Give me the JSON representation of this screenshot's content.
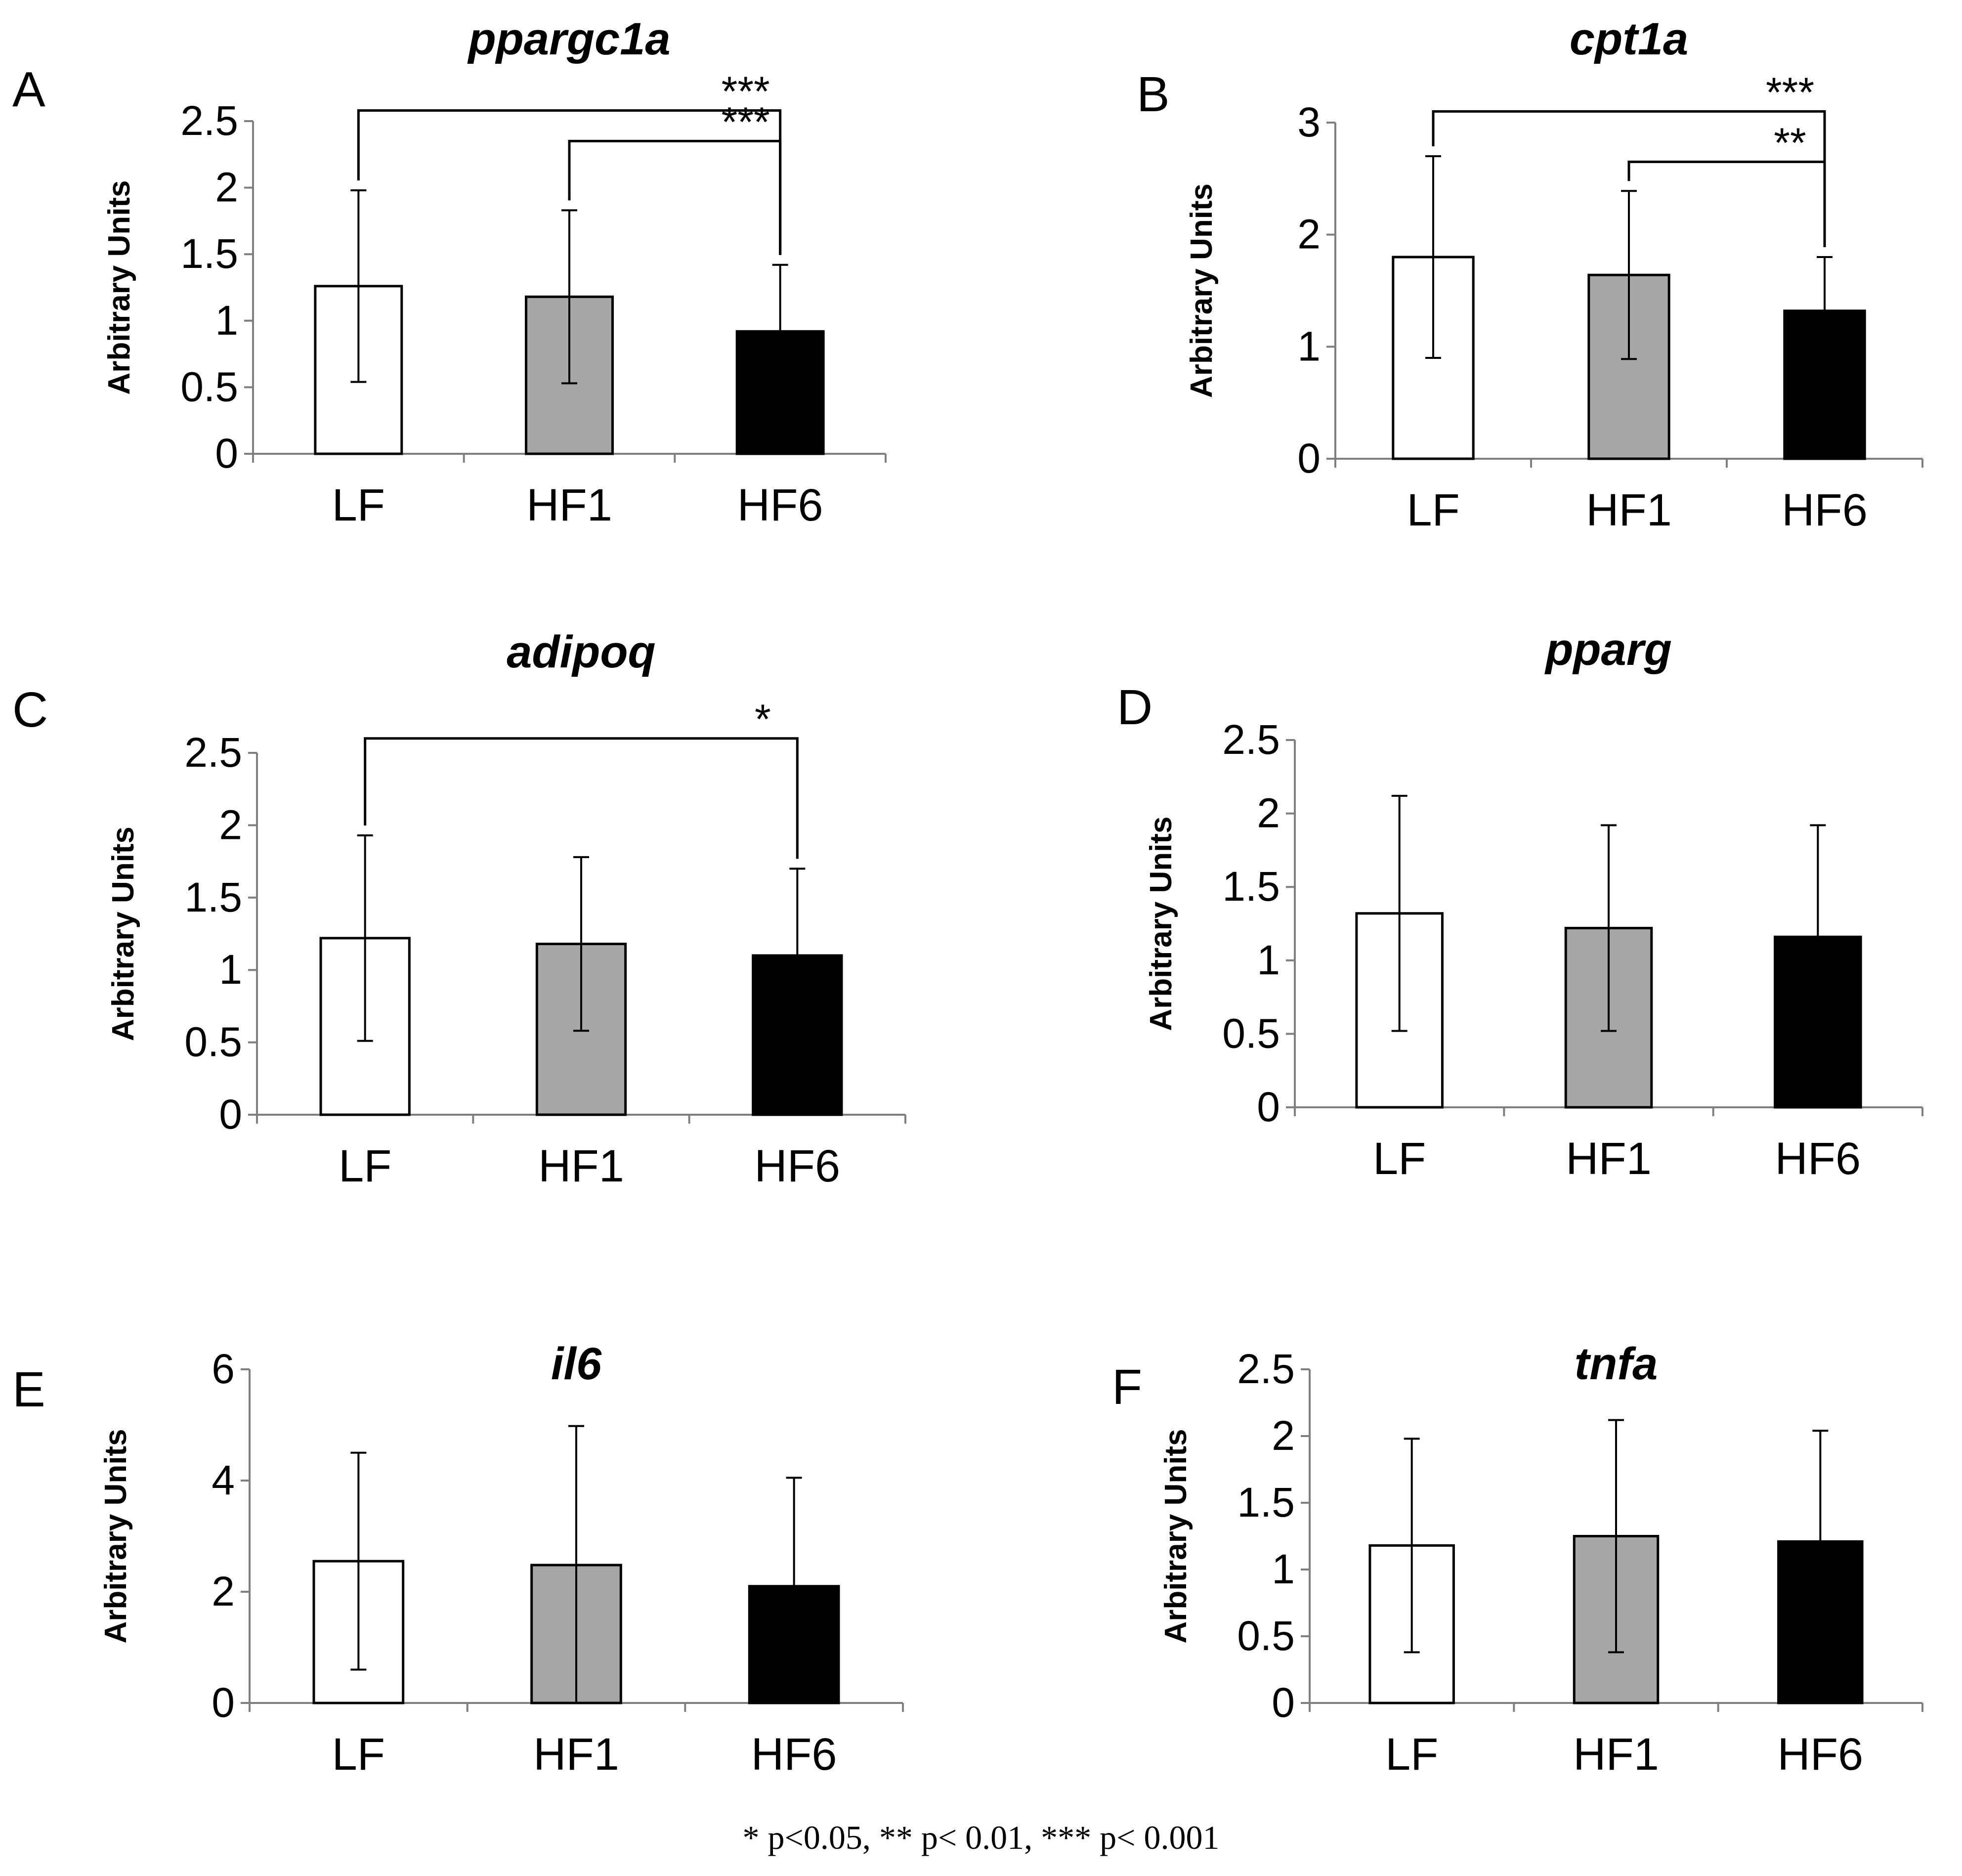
{
  "footnote": "* p<0.05, ** p< 0.01, *** p< 0.001",
  "colors": {
    "LF": "#ffffff",
    "HF1": "#a6a6a6",
    "HF6": "#000000"
  },
  "chart_data": [
    {
      "type": "bar",
      "letter": "A",
      "title": "ppargc1a",
      "ylabel": "Arbitrary Units",
      "categories": [
        "LF",
        "HF1",
        "HF6"
      ],
      "values": [
        1.26,
        1.18,
        0.92
      ],
      "errors": [
        0.72,
        0.65,
        0.5
      ],
      "ylim": [
        0,
        2.5
      ],
      "yticks": [
        0,
        0.5,
        1,
        1.5,
        2,
        2.5
      ],
      "ytick_labels": [
        "0",
        "0.5",
        "1",
        "1.5",
        "2",
        "2.5"
      ],
      "significance": [
        {
          "from": "HF1",
          "to": "HF6",
          "label": "***",
          "level": 2.35
        },
        {
          "from": "LF",
          "to": "HF6",
          "label": "***",
          "level": 2.58
        }
      ]
    },
    {
      "type": "bar",
      "letter": "B",
      "title": "cpt1a",
      "ylabel": "Arbitrary Units",
      "categories": [
        "LF",
        "HF1",
        "HF6"
      ],
      "values": [
        1.8,
        1.64,
        1.32
      ],
      "errors": [
        0.9,
        0.75,
        0.48
      ],
      "ylim": [
        0,
        3
      ],
      "yticks": [
        0,
        1,
        2,
        3
      ],
      "ytick_labels": [
        "0",
        "1",
        "2",
        "3"
      ],
      "significance": [
        {
          "from": "HF1",
          "to": "HF6",
          "label": "**",
          "level": 2.65
        },
        {
          "from": "LF",
          "to": "HF6",
          "label": "***",
          "level": 3.1
        }
      ]
    },
    {
      "type": "bar",
      "letter": "C",
      "title": "adipoq",
      "ylabel": "Arbitrary Units",
      "categories": [
        "LF",
        "HF1",
        "HF6"
      ],
      "values": [
        1.22,
        1.18,
        1.1
      ],
      "errors": [
        0.71,
        0.6,
        0.6
      ],
      "ylim": [
        0,
        2.5
      ],
      "yticks": [
        0,
        0.5,
        1,
        1.5,
        2,
        2.5
      ],
      "ytick_labels": [
        "0",
        "0.5",
        "1",
        "1.5",
        "2",
        "2.5"
      ],
      "significance": [
        {
          "from": "LF",
          "to": "HF6",
          "label": "*",
          "level": 2.6
        }
      ]
    },
    {
      "type": "bar",
      "letter": "D",
      "title": "pparg",
      "ylabel": "Arbitrary Units",
      "categories": [
        "LF",
        "HF1",
        "HF6"
      ],
      "values": [
        1.32,
        1.22,
        1.16
      ],
      "errors": [
        0.8,
        0.7,
        0.76
      ],
      "ylim": [
        0,
        2.5
      ],
      "yticks": [
        0,
        0.5,
        1,
        1.5,
        2,
        2.5
      ],
      "ytick_labels": [
        "0",
        "0.5",
        "1",
        "1.5",
        "2",
        "2.5"
      ],
      "significance": []
    },
    {
      "type": "bar",
      "letter": "E",
      "title": "il6",
      "ylabel": "Arbitrary Units",
      "categories": [
        "LF",
        "HF1",
        "HF6"
      ],
      "values": [
        2.55,
        2.48,
        2.1
      ],
      "errors": [
        1.95,
        2.5,
        1.95
      ],
      "ylim": [
        0,
        6
      ],
      "yticks": [
        0,
        2,
        4,
        6
      ],
      "ytick_labels": [
        "0",
        "2",
        "4",
        "6"
      ],
      "significance": []
    },
    {
      "type": "bar",
      "letter": "F",
      "title": "tnfa",
      "ylabel": "Arbitrary Units",
      "categories": [
        "LF",
        "HF1",
        "HF6"
      ],
      "values": [
        1.18,
        1.25,
        1.21
      ],
      "errors": [
        0.8,
        0.87,
        0.83
      ],
      "ylim": [
        0,
        2.5
      ],
      "yticks": [
        0,
        0.5,
        1,
        1.5,
        2,
        2.5
      ],
      "ytick_labels": [
        "0",
        "0.5",
        "1",
        "1.5",
        "2",
        "2.5"
      ],
      "significance": []
    }
  ]
}
